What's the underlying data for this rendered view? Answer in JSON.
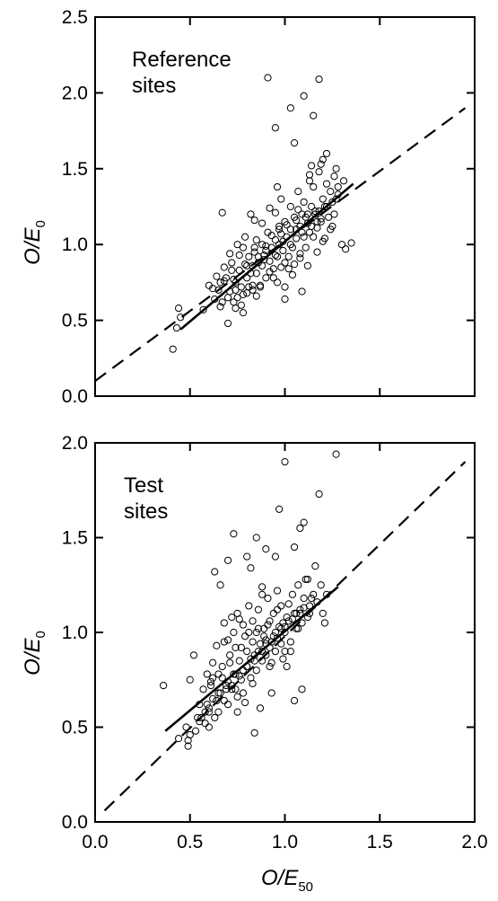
{
  "chart_data": [
    {
      "type": "scatter",
      "panel_label": [
        "Reference",
        "sites"
      ],
      "xlabel": {
        "main": "O/E",
        "sub": ""
      },
      "ylabel": {
        "main": "O/E",
        "sub": "0"
      },
      "xlim": [
        0,
        2.0
      ],
      "ylim": [
        0,
        2.5
      ],
      "x_ticks": [],
      "y_ticks": [
        "0.0",
        "0.5",
        "1.0",
        "1.5",
        "2.0",
        "2.5"
      ],
      "grid": false,
      "colors": {
        "points": "#000000",
        "lines": "#000000"
      },
      "series": [
        {
          "marker": "open-circle",
          "x": [
            0.44,
            0.45,
            0.43,
            0.57,
            0.6,
            0.62,
            0.63,
            0.64,
            0.65,
            0.66,
            0.67,
            0.67,
            0.68,
            0.69,
            0.7,
            0.71,
            0.72,
            0.73,
            0.74,
            0.75,
            0.75,
            0.76,
            0.77,
            0.78,
            0.78,
            0.79,
            0.8,
            0.8,
            0.81,
            0.82,
            0.83,
            0.83,
            0.84,
            0.85,
            0.85,
            0.86,
            0.87,
            0.88,
            0.88,
            0.89,
            0.9,
            0.9,
            0.91,
            0.92,
            0.92,
            0.93,
            0.94,
            0.95,
            0.95,
            0.96,
            0.97,
            0.98,
            0.98,
            0.99,
            1.0,
            1.0,
            1.01,
            1.02,
            1.03,
            1.03,
            1.04,
            1.05,
            1.05,
            1.06,
            1.07,
            1.08,
            1.08,
            1.09,
            1.1,
            1.1,
            1.11,
            1.12,
            1.13,
            1.13,
            1.14,
            1.15,
            1.15,
            1.16,
            1.17,
            1.18,
            1.18,
            1.19,
            1.2,
            1.2,
            1.21,
            1.22,
            1.23,
            1.24,
            1.25,
            1.26,
            1.27,
            1.28,
            1.3,
            1.32,
            1.35,
            0.68,
            0.72,
            0.74,
            0.76,
            0.8,
            0.82,
            0.84,
            0.86,
            0.88,
            0.9,
            0.93,
            0.95,
            0.97,
            0.99,
            1.01,
            1.03,
            1.06,
            1.09,
            1.11,
            1.14,
            1.16,
            1.19,
            1.22,
            1.25,
            1.28,
            0.78,
            0.83,
            0.87,
            0.92,
            0.96,
            1.0,
            1.04,
            1.08,
            1.12,
            1.17,
            1.21,
            1.24,
            0.91,
            1.03,
            1.1,
            1.18,
            1.15,
            0.95,
            1.05,
            1.22,
            0.7,
            0.73,
            0.77,
            0.81,
            0.85,
            0.89,
            0.94,
            0.98,
            1.02,
            1.07,
            1.13,
            1.19,
            1.26,
            1.31,
            0.66,
            0.71,
            0.79,
            0.84,
            0.96,
            1.0,
            1.09,
            1.14,
            1.2,
            1.27,
            0.41,
            0.74,
            0.97,
            1.06,
            1.12,
            1.17
          ],
          "y": [
            0.58,
            0.52,
            0.45,
            0.57,
            0.73,
            0.71,
            0.64,
            0.79,
            0.7,
            0.75,
            0.62,
            1.21,
            0.85,
            0.78,
            0.48,
            0.94,
            0.88,
            0.62,
            0.75,
            1.0,
            0.65,
            0.83,
            0.72,
            0.98,
            0.55,
            0.87,
            0.78,
            0.68,
            0.92,
            1.2,
            0.86,
            0.73,
            0.98,
            0.81,
            1.03,
            0.92,
            0.73,
            1.14,
            0.86,
            0.9,
            0.99,
            0.78,
            1.08,
            0.89,
            1.24,
            0.98,
            0.84,
            1.03,
            1.21,
            0.92,
            1.12,
            0.85,
            1.3,
            0.96,
            1.15,
            0.72,
            1.05,
            0.92,
            1.25,
            1.1,
            0.98,
            1.18,
            0.87,
            1.04,
            1.35,
            1.12,
            0.94,
            1.2,
            1.05,
            1.28,
            0.98,
            1.14,
            1.42,
            1.08,
            1.25,
            1.05,
            1.38,
            1.2,
            1.11,
            1.48,
            1.22,
            1.15,
            1.3,
            1.02,
            1.25,
            1.4,
            1.18,
            1.35,
            1.12,
            1.2,
            1.3,
            1.38,
            1.0,
            0.97,
            1.01,
            0.76,
            0.83,
            0.7,
            0.93,
            0.86,
            0.81,
            0.95,
            0.88,
            1.0,
            0.96,
            1.06,
            0.93,
            1.1,
            1.02,
            1.13,
            1.0,
            1.16,
            1.08,
            1.18,
            1.12,
            1.22,
            1.17,
            1.25,
            1.28,
            1.33,
            0.67,
            0.7,
            0.72,
            0.82,
            0.75,
            0.88,
            0.8,
            0.91,
            0.86,
            0.95,
            1.04,
            1.1,
            2.1,
            1.9,
            1.98,
            2.09,
            1.85,
            1.77,
            1.67,
            1.6,
            0.65,
            0.77,
            0.6,
            0.72,
            0.66,
            0.93,
            0.78,
            1.07,
            0.84,
            1.23,
            1.46,
            1.53,
            1.45,
            1.42,
            0.59,
            0.69,
            1.05,
            1.16,
            1.38,
            0.64,
            0.69,
            1.52,
            1.56,
            1.5,
            0.31,
            0.58,
            1.0,
            1.1,
            1.2,
            1.15
          ]
        }
      ],
      "lines": [
        {
          "style": "dashed",
          "x": [
            0.0,
            1.95
          ],
          "y": [
            0.1,
            1.9
          ]
        },
        {
          "style": "solid",
          "x": [
            0.45,
            1.36
          ],
          "y": [
            0.44,
            1.4
          ]
        }
      ]
    },
    {
      "type": "scatter",
      "panel_label": [
        "Test",
        "sites"
      ],
      "xlabel": {
        "main": "O/E",
        "sub": "50"
      },
      "ylabel": {
        "main": "O/E",
        "sub": "0"
      },
      "xlim": [
        0,
        2.0
      ],
      "ylim": [
        0,
        2.0
      ],
      "x_ticks": [
        "0.0",
        "0.5",
        "1.0",
        "1.5",
        "2.0"
      ],
      "y_ticks": [
        "0.0",
        "0.5",
        "1.0",
        "1.5",
        "2.0"
      ],
      "grid": false,
      "colors": {
        "points": "#000000",
        "lines": "#000000"
      },
      "series": [
        {
          "marker": "open-circle",
          "x": [
            0.36,
            0.44,
            0.48,
            0.49,
            0.5,
            0.5,
            0.52,
            0.53,
            0.55,
            0.56,
            0.57,
            0.58,
            0.59,
            0.6,
            0.6,
            0.61,
            0.62,
            0.63,
            0.64,
            0.65,
            0.65,
            0.66,
            0.67,
            0.68,
            0.68,
            0.69,
            0.7,
            0.7,
            0.71,
            0.72,
            0.73,
            0.73,
            0.74,
            0.75,
            0.75,
            0.76,
            0.77,
            0.78,
            0.78,
            0.79,
            0.8,
            0.8,
            0.81,
            0.82,
            0.83,
            0.83,
            0.84,
            0.85,
            0.85,
            0.86,
            0.87,
            0.88,
            0.88,
            0.89,
            0.9,
            0.9,
            0.91,
            0.92,
            0.93,
            0.93,
            0.94,
            0.95,
            0.95,
            0.96,
            0.97,
            0.98,
            0.98,
            0.99,
            1.0,
            1.0,
            1.01,
            1.02,
            1.03,
            1.04,
            1.05,
            1.06,
            1.07,
            1.08,
            1.09,
            1.1,
            1.11,
            1.12,
            1.13,
            1.15,
            1.17,
            1.19,
            1.2,
            1.22,
            0.58,
            0.62,
            0.66,
            0.7,
            0.74,
            0.78,
            0.82,
            0.86,
            0.9,
            0.94,
            0.98,
            1.02,
            1.06,
            1.1,
            1.14,
            0.55,
            0.6,
            0.64,
            0.69,
            0.72,
            0.76,
            0.8,
            0.84,
            0.88,
            0.92,
            0.96,
            1.0,
            1.04,
            1.08,
            0.7,
            0.73,
            0.63,
            0.8,
            0.85,
            0.9,
            0.97,
            1.08,
            1.27,
            1.18,
            1.0,
            1.1,
            0.82,
            0.88,
            1.05,
            0.95,
            0.76,
            0.86,
            1.12,
            0.67,
            0.74,
            0.79,
            0.87,
            0.93,
            1.01,
            1.09,
            0.49,
            0.54,
            0.59,
            0.61,
            0.65,
            0.71,
            0.77,
            0.81,
            0.83,
            0.89,
            0.91,
            0.99,
            1.03,
            1.07,
            1.13,
            1.16,
            1.21,
            0.62,
            0.68,
            0.72,
            0.75,
            0.84,
            0.92,
            0.96,
            1.05
          ],
          "y": [
            0.72,
            0.44,
            0.5,
            0.4,
            0.75,
            0.46,
            0.88,
            0.48,
            0.62,
            0.55,
            0.7,
            0.52,
            0.78,
            0.6,
            0.5,
            0.74,
            0.84,
            0.55,
            0.93,
            0.68,
            0.58,
            1.25,
            0.82,
            0.64,
            1.05,
            0.72,
            0.96,
            0.62,
            0.88,
            0.7,
            1.0,
            0.78,
            0.92,
            0.66,
            1.1,
            0.85,
            0.75,
            1.04,
            0.68,
            0.98,
            0.9,
            0.82,
            1.14,
            0.76,
            0.95,
            1.06,
            0.88,
            1.0,
            0.8,
            1.12,
            0.94,
            0.85,
            1.2,
            1.02,
            0.96,
            0.88,
            1.18,
            1.06,
            0.95,
            0.84,
            1.1,
            1.0,
            0.9,
            1.22,
            1.03,
            0.94,
            1.14,
            1.05,
            1.0,
            0.9,
            1.08,
            1.15,
            0.95,
            1.2,
            1.1,
            1.02,
            1.25,
            1.12,
            1.05,
            1.18,
            1.28,
            1.08,
            1.14,
            1.2,
            1.16,
            1.25,
            1.1,
            1.2,
            0.58,
            0.65,
            0.68,
            0.74,
            0.78,
            0.8,
            0.86,
            0.9,
            0.94,
            0.98,
            1.02,
            1.06,
            1.1,
            1.13,
            1.18,
            0.53,
            0.58,
            0.64,
            0.7,
            0.72,
            0.77,
            0.82,
            0.85,
            0.9,
            0.92,
            0.97,
            1.03,
            1.07,
            1.1,
            1.38,
            1.52,
            1.32,
            1.4,
            1.5,
            1.44,
            1.65,
            1.55,
            1.94,
            1.73,
            1.9,
            1.58,
            1.34,
            1.24,
            1.45,
            1.4,
            1.07,
            1.02,
            1.28,
            0.76,
            0.7,
            0.63,
            0.6,
            0.68,
            0.82,
            0.7,
            0.43,
            0.55,
            0.62,
            0.72,
            0.78,
            0.84,
            0.92,
            1.0,
            0.73,
            0.98,
            1.04,
            0.86,
            0.9,
            1.02,
            1.1,
            1.35,
            1.05,
            0.76,
            0.95,
            1.08,
            0.58,
            0.47,
            0.82,
            1.12,
            0.64
          ]
        }
      ],
      "lines": [
        {
          "style": "dashed",
          "x": [
            0.05,
            1.95
          ],
          "y": [
            0.06,
            1.9
          ]
        },
        {
          "style": "solid",
          "x": [
            0.37,
            1.28
          ],
          "y": [
            0.48,
            1.24
          ]
        }
      ]
    }
  ]
}
